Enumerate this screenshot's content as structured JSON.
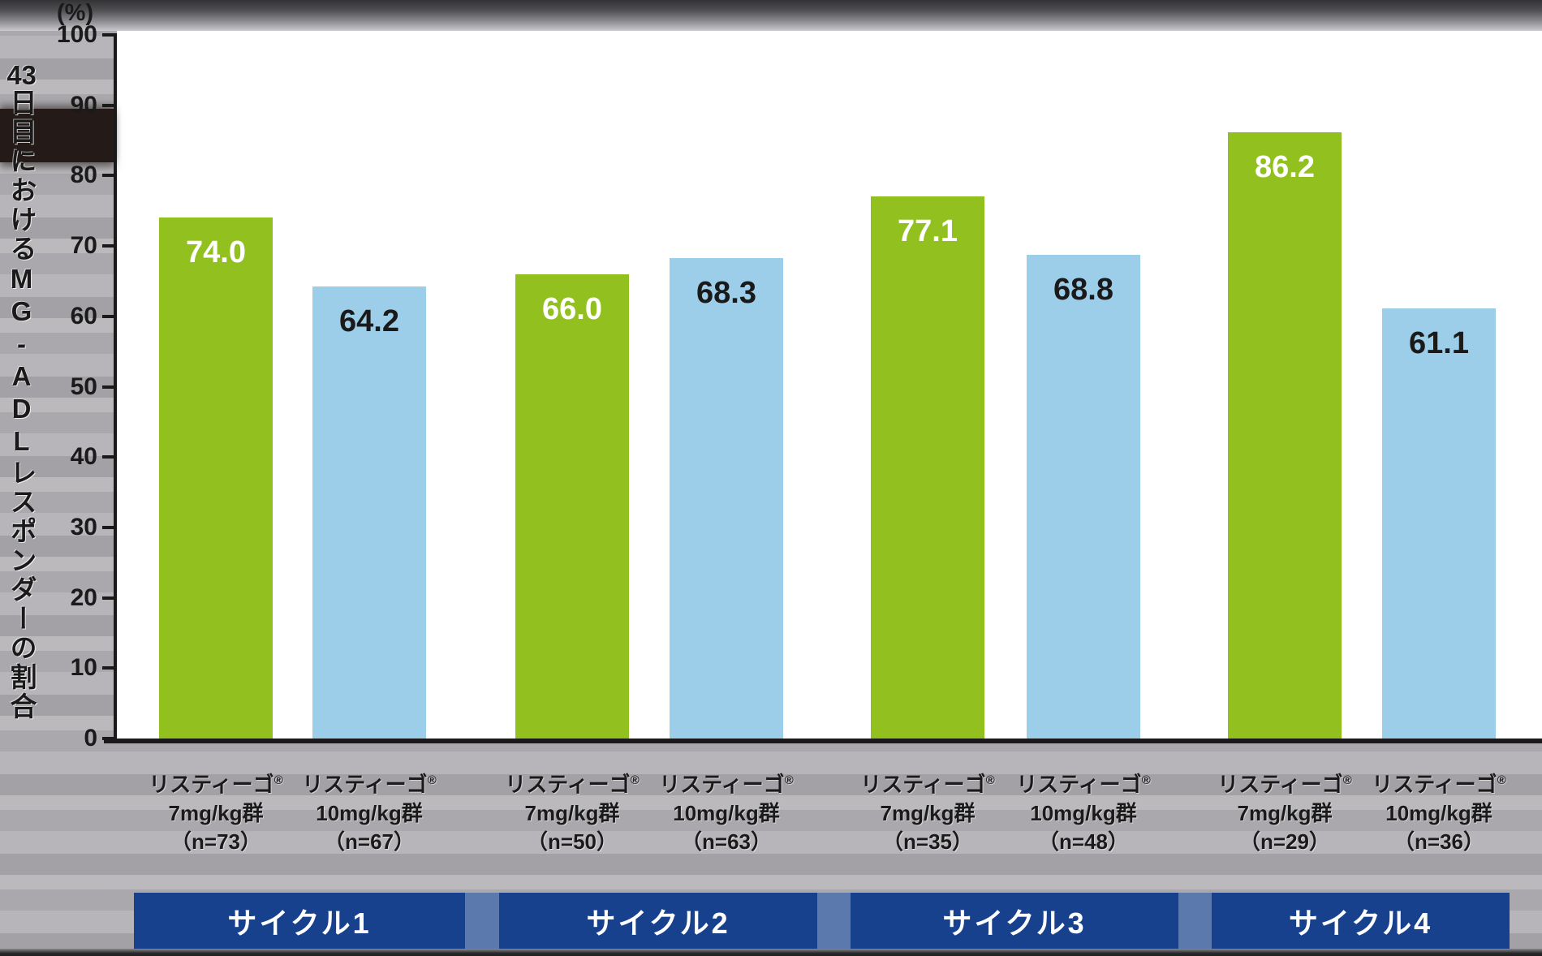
{
  "chart_data": {
    "type": "bar",
    "title": "",
    "unit": "(%)",
    "ylabel": "43日目におけるMG-ADLレスポンダーの割合",
    "ylabel_parts": {
      "num": "43",
      "rest": "日目におけるMG-ADLレスポンダーの割合"
    },
    "ylim": [
      0,
      100
    ],
    "yticks": [
      0,
      10,
      20,
      30,
      40,
      50,
      60,
      70,
      80,
      90,
      100
    ],
    "grid": false,
    "legend": "none",
    "categories": [
      "サイクル1",
      "サイクル2",
      "サイクル3",
      "サイクル4"
    ],
    "series": [
      {
        "name": "リスティーゴ® 7mg/kg群",
        "color": "#92C01F",
        "values": [
          74.0,
          66.0,
          77.1,
          86.2
        ],
        "n": [
          73,
          50,
          35,
          29
        ]
      },
      {
        "name": "リスティーゴ® 10mg/kg群",
        "color": "#9CCDE9",
        "values": [
          64.2,
          68.3,
          68.8,
          61.1
        ],
        "n": [
          67,
          63,
          48,
          36
        ]
      }
    ],
    "xlabels": [
      {
        "brand": "リスティーゴ",
        "reg": "®",
        "dose": "7mg/kg群",
        "n": "（n=73）"
      },
      {
        "brand": "リスティーゴ",
        "reg": "®",
        "dose": "10mg/kg群",
        "n": "（n=67）"
      },
      {
        "brand": "リスティーゴ",
        "reg": "®",
        "dose": "7mg/kg群",
        "n": "（n=50）"
      },
      {
        "brand": "リスティーゴ",
        "reg": "®",
        "dose": "10mg/kg群",
        "n": "（n=63）"
      },
      {
        "brand": "リスティーゴ",
        "reg": "®",
        "dose": "7mg/kg群",
        "n": "（n=35）"
      },
      {
        "brand": "リスティーゴ",
        "reg": "®",
        "dose": "10mg/kg群",
        "n": "（n=48）"
      },
      {
        "brand": "リスティーゴ",
        "reg": "®",
        "dose": "7mg/kg群",
        "n": "（n=29）"
      },
      {
        "brand": "リスティーゴ",
        "reg": "®",
        "dose": "10mg/kg群",
        "n": "（n=36）"
      }
    ],
    "value_label_colors": {
      "on_green": "#FFFFFF",
      "on_blue": "#1A1A1A"
    },
    "cycle_band_colors": {
      "band": "#17418D",
      "separator": "#5B79AC",
      "text": "#FFFFFF"
    }
  }
}
